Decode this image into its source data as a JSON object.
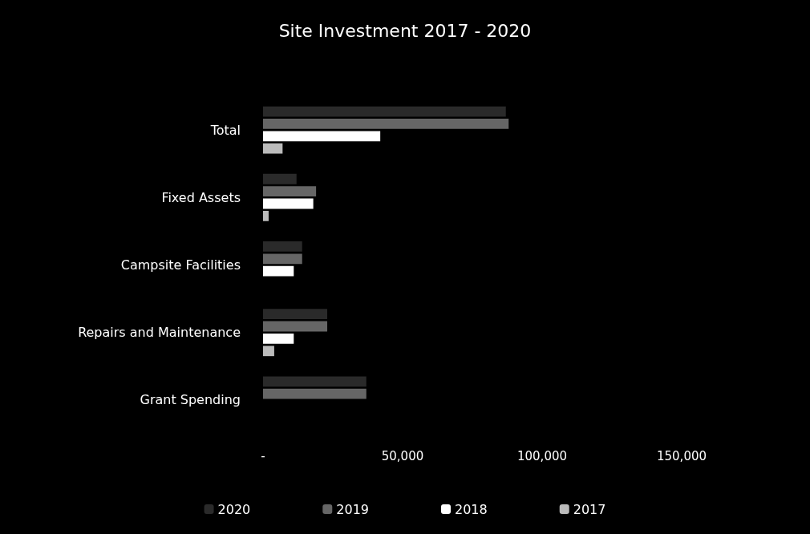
{
  "chart_data": {
    "type": "bar",
    "orientation": "horizontal",
    "title": "Site Investment 2017 - 2020",
    "categories": [
      "Total",
      "Fixed Assets",
      "Campsite Facilities",
      "Repairs and Maintenance",
      "Grant Spending"
    ],
    "series": [
      {
        "name": "2020",
        "color": "#2a2a2a",
        "values": [
          87000,
          12000,
          14000,
          23000,
          37000
        ]
      },
      {
        "name": "2019",
        "color": "#666666",
        "values": [
          88000,
          19000,
          14000,
          23000,
          37000
        ]
      },
      {
        "name": "2018",
        "color": "#ffffff",
        "values": [
          42000,
          18000,
          11000,
          11000,
          null
        ]
      },
      {
        "name": "2017",
        "color": "#bbbbbb",
        "values": [
          7000,
          2000,
          null,
          4000,
          null
        ]
      }
    ],
    "xlim": [
      0,
      150000
    ],
    "xticks": [
      {
        "value": 0,
        "label": "-"
      },
      {
        "value": 50000,
        "label": "50,000"
      },
      {
        "value": 100000,
        "label": "100,000"
      },
      {
        "value": 150000,
        "label": "150,000"
      }
    ],
    "grid": false,
    "legend": "bottom"
  }
}
